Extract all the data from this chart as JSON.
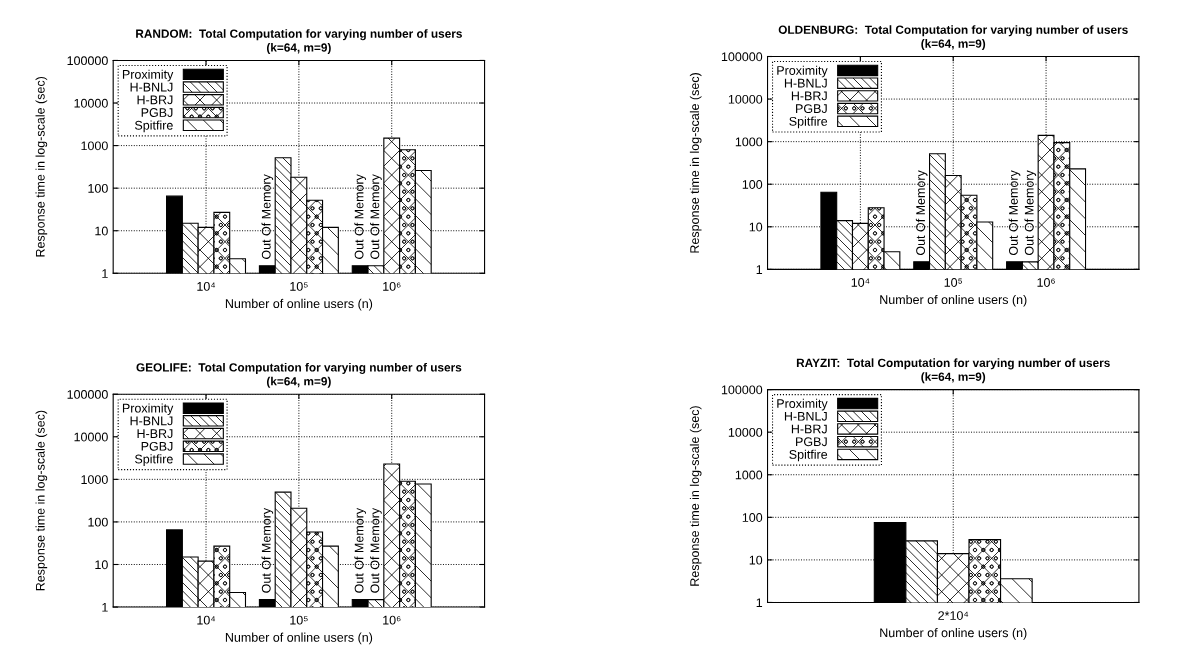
{
  "chart_data": [
    {
      "type": "bar",
      "title": "RANDOM:  Total Computation for varying number of users",
      "subtitle": "(k=64, m=9)",
      "xlabel": "Number of online users (n)",
      "ylabel": "Response time in log-scale (sec)",
      "categories": [
        "10⁴",
        "10⁵",
        "10⁶"
      ],
      "series": [
        {
          "name": "Proximity",
          "color": "#000000",
          "values": [
            65,
            1.5,
            1.5
          ]
        },
        {
          "name": "H-BNLJ",
          "color": "#000000",
          "values": [
            15,
            520,
            1.5
          ]
        },
        {
          "name": "H-BRJ",
          "color": "#000000",
          "values": [
            12,
            180,
            1500
          ]
        },
        {
          "name": "PGBJ",
          "color": "#000000",
          "values": [
            27,
            52,
            800
          ]
        },
        {
          "name": "Spitfire",
          "color": "#000000",
          "values": [
            2.2,
            12,
            260
          ]
        }
      ],
      "annotations": [
        "Out Of Memory",
        "Out Of Memory",
        "Out Of Memory"
      ],
      "log": "y",
      "ylim": [
        1,
        100000
      ],
      "yticks": [
        1,
        10,
        100,
        1000,
        10000,
        100000
      ],
      "grid": true,
      "legend": "top left"
    },
    {
      "type": "bar",
      "title": "OLDENBURG:  Total Computation for varying number of users",
      "subtitle": "(k=64, m=9)",
      "xlabel": "Number of online users (n)",
      "ylabel": "Response time in log-scale (sec)",
      "categories": [
        "10⁴",
        "10⁵",
        "10⁶"
      ],
      "series": [
        {
          "name": "Proximity",
          "color": "#000000",
          "values": [
            65,
            1.5,
            1.5
          ]
        },
        {
          "name": "H-BNLJ",
          "color": "#000000",
          "values": [
            14,
            520,
            1.5
          ]
        },
        {
          "name": "H-BRJ",
          "color": "#000000",
          "values": [
            12,
            160,
            1400
          ]
        },
        {
          "name": "PGBJ",
          "color": "#000000",
          "values": [
            28,
            55,
            950
          ]
        },
        {
          "name": "Spitfire",
          "color": "#000000",
          "values": [
            2.6,
            13,
            230
          ]
        }
      ],
      "annotations": [
        "Out Of Memory",
        "Out Of Memory",
        "Out Of Memory"
      ],
      "log": "y",
      "ylim": [
        1,
        100000
      ],
      "yticks": [
        1,
        10,
        100,
        1000,
        10000,
        100000
      ],
      "grid": true,
      "legend": "top left"
    },
    {
      "type": "bar",
      "title": "GEOLIFE:  Total Computation for varying number of users",
      "subtitle": "(k=64, m=9)",
      "xlabel": "Number of online users (n)",
      "ylabel": "Response time in log-scale (sec)",
      "categories": [
        "10⁴",
        "10⁵",
        "10⁶"
      ],
      "series": [
        {
          "name": "Proximity",
          "color": "#000000",
          "values": [
            65,
            1.5,
            1.5
          ]
        },
        {
          "name": "H-BNLJ",
          "color": "#000000",
          "values": [
            15,
            500,
            1.5
          ]
        },
        {
          "name": "H-BRJ",
          "color": "#000000",
          "values": [
            12,
            210,
            2300
          ]
        },
        {
          "name": "PGBJ",
          "color": "#000000",
          "values": [
            27,
            58,
            900
          ]
        },
        {
          "name": "Spitfire",
          "color": "#000000",
          "values": [
            2.2,
            27,
            780
          ]
        }
      ],
      "annotations": [
        "Out Of Memory",
        "Out Of Memory",
        "Out Of Memory"
      ],
      "log": "y",
      "ylim": [
        1,
        100000
      ],
      "yticks": [
        1,
        10,
        100,
        1000,
        10000,
        100000
      ],
      "grid": true,
      "legend": "top left"
    },
    {
      "type": "bar",
      "title": "RAYZIT:  Total Computation for varying number of users",
      "subtitle": "(k=64, m=9)",
      "xlabel": "Number of online users (n)",
      "ylabel": "Response time in log-scale (sec)",
      "categories": [
        "2*10⁴"
      ],
      "series": [
        {
          "name": "Proximity",
          "color": "#000000",
          "values": [
            75
          ]
        },
        {
          "name": "H-BNLJ",
          "color": "#000000",
          "values": [
            28
          ]
        },
        {
          "name": "H-BRJ",
          "color": "#000000",
          "values": [
            14
          ]
        },
        {
          "name": "PGBJ",
          "color": "#000000",
          "values": [
            30
          ]
        },
        {
          "name": "Spitfire",
          "color": "#000000",
          "values": [
            3.6
          ]
        }
      ],
      "log": "y",
      "ylim": [
        1,
        100000
      ],
      "yticks": [
        1,
        10,
        100,
        1000,
        10000,
        100000
      ],
      "grid": true,
      "legend": "top left"
    }
  ]
}
